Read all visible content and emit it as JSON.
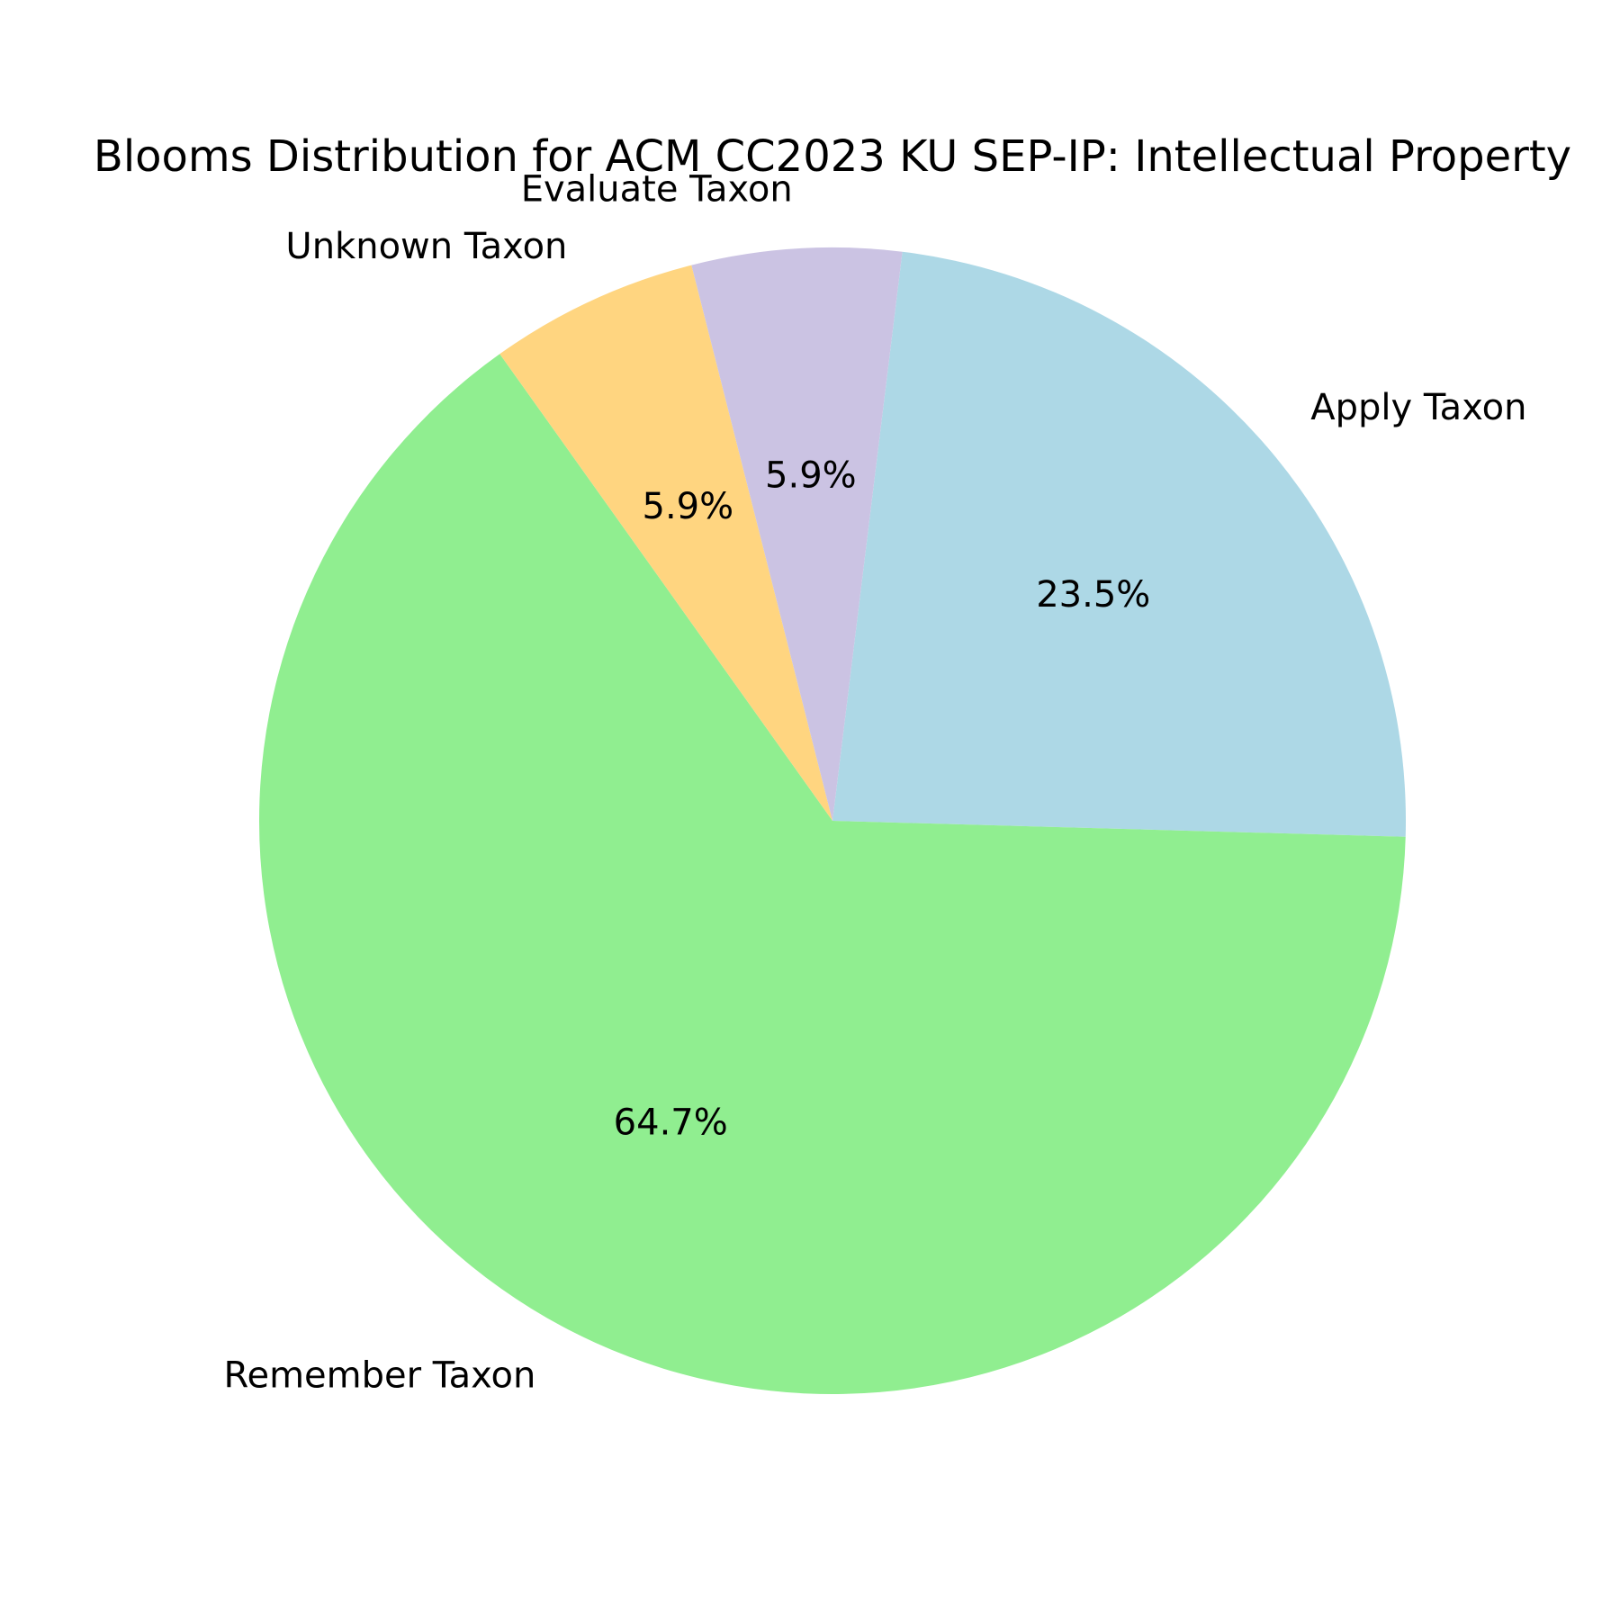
{
  "chart_data": {
    "type": "pie",
    "title": "Blooms Distribution for ACM CC2023 KU SEP-IP: Intellectual Property",
    "categories": [
      "Apply Taxon",
      "Remember Taxon",
      "Unknown Taxon",
      "Evaluate Taxon"
    ],
    "values": [
      23.5,
      64.7,
      5.9,
      5.9
    ],
    "percent_labels": [
      "23.5%",
      "64.7%",
      "5.9%",
      "5.9%"
    ],
    "colors": [
      "#add8e6",
      "#90ee90",
      "#ffd580",
      "#cbc3e3"
    ],
    "start_angle_deg": 83,
    "direction": "clockwise",
    "legend": "none"
  }
}
